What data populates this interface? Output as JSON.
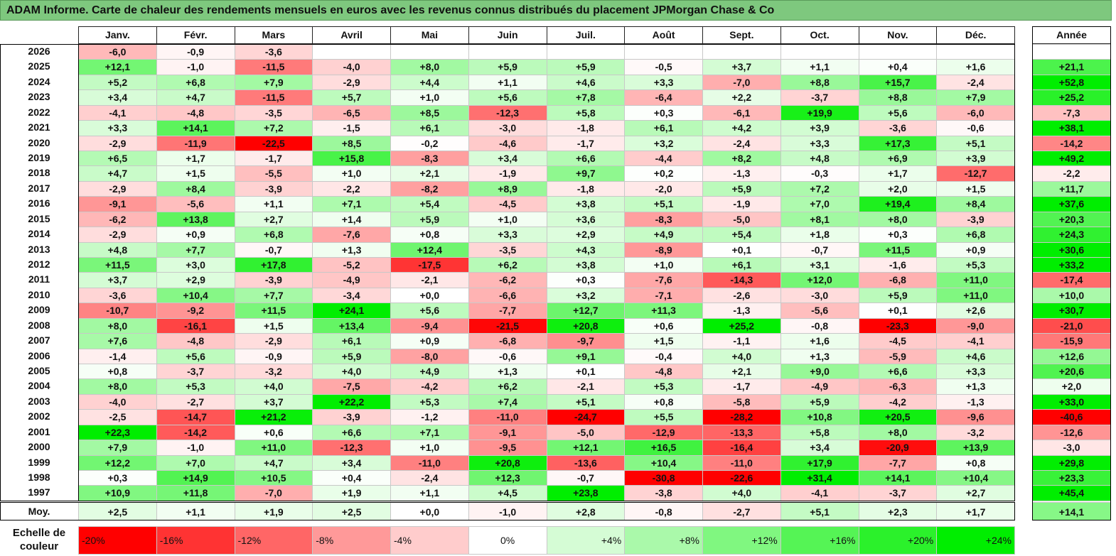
{
  "title": "ADAM Informe. Carte de chaleur des rendements mensuels en euros avec les revenus connus distribués du placement JPMorgan Chase & Co",
  "year_header": "Année",
  "avg_label": "Moy.",
  "scale_label": "Echelle de couleur",
  "colors": {
    "neg_max": "#ff0000",
    "neutral": "#ffffff",
    "pos_max": "#00ee00",
    "title_bg": "#7ec87e"
  },
  "chart_data": {
    "type": "heatmap",
    "title": "ADAM Informe. Carte de chaleur des rendements mensuels en euros avec les revenus connus distribués du placement JPMorgan Chase & Co",
    "unit": "%",
    "months": [
      "Janv.",
      "Févr.",
      "Mars",
      "Avril",
      "Mai",
      "Juin",
      "Juil.",
      "Août",
      "Sept.",
      "Oct.",
      "Nov.",
      "Déc."
    ],
    "rows": [
      {
        "year": "2026",
        "values": [
          -6.0,
          -0.9,
          -3.6,
          null,
          null,
          null,
          null,
          null,
          null,
          null,
          null,
          null
        ],
        "annual": null
      },
      {
        "year": "2025",
        "values": [
          12.1,
          -1.0,
          -11.5,
          -4.0,
          8.0,
          5.9,
          5.9,
          -0.5,
          3.7,
          1.1,
          0.4,
          1.6
        ],
        "annual": 21.1
      },
      {
        "year": "2024",
        "values": [
          5.2,
          6.8,
          7.9,
          -2.9,
          4.4,
          1.1,
          4.6,
          3.3,
          -7.0,
          8.8,
          15.7,
          -2.4
        ],
        "annual": 52.8
      },
      {
        "year": "2023",
        "values": [
          3.4,
          4.7,
          -11.5,
          5.7,
          1.0,
          5.6,
          7.8,
          -6.4,
          2.2,
          -3.7,
          8.8,
          7.9
        ],
        "annual": 25.2
      },
      {
        "year": "2022",
        "values": [
          -4.1,
          -4.8,
          -3.5,
          -6.5,
          8.5,
          -12.3,
          5.8,
          0.3,
          -6.1,
          19.9,
          5.6,
          -6.0
        ],
        "annual": -7.3
      },
      {
        "year": "2021",
        "values": [
          3.3,
          14.1,
          7.2,
          -1.5,
          6.1,
          -3.0,
          -1.8,
          6.1,
          4.2,
          3.9,
          -3.6,
          -0.6
        ],
        "annual": 38.1
      },
      {
        "year": "2020",
        "values": [
          -2.9,
          -11.9,
          -22.5,
          8.5,
          -0.2,
          -4.6,
          -1.7,
          3.2,
          -2.4,
          3.3,
          17.3,
          5.1
        ],
        "annual": -14.2
      },
      {
        "year": "2019",
        "values": [
          6.5,
          1.7,
          -1.7,
          15.8,
          -8.3,
          3.4,
          6.6,
          -4.4,
          8.2,
          4.8,
          6.9,
          3.9
        ],
        "annual": 49.2
      },
      {
        "year": "2018",
        "values": [
          4.7,
          1.5,
          -5.5,
          1.0,
          2.1,
          -1.9,
          9.7,
          0.2,
          -1.3,
          -0.3,
          1.7,
          -12.7
        ],
        "annual": -2.2
      },
      {
        "year": "2017",
        "values": [
          -2.9,
          8.4,
          -3.9,
          -2.2,
          -8.2,
          8.9,
          -1.8,
          -2.0,
          5.9,
          7.2,
          2.0,
          1.5
        ],
        "annual": 11.7
      },
      {
        "year": "2016",
        "values": [
          -9.1,
          -5.6,
          1.1,
          7.1,
          5.4,
          -4.5,
          3.8,
          5.1,
          -1.9,
          7.0,
          19.4,
          8.4
        ],
        "annual": 37.6
      },
      {
        "year": "2015",
        "values": [
          -6.2,
          13.8,
          2.7,
          1.4,
          5.9,
          1.0,
          3.6,
          -8.3,
          -5.0,
          8.1,
          8.0,
          -3.9
        ],
        "annual": 20.3
      },
      {
        "year": "2014",
        "values": [
          -2.9,
          0.9,
          6.8,
          -7.6,
          0.8,
          3.3,
          2.9,
          4.9,
          5.4,
          1.8,
          0.3,
          6.8
        ],
        "annual": 24.3
      },
      {
        "year": "2013",
        "values": [
          4.8,
          7.7,
          -0.7,
          1.3,
          12.4,
          -3.5,
          4.3,
          -8.9,
          0.1,
          -0.7,
          11.5,
          0.9
        ],
        "annual": 30.6
      },
      {
        "year": "2012",
        "values": [
          11.5,
          3.0,
          17.8,
          -5.2,
          -17.5,
          6.2,
          3.8,
          1.0,
          6.1,
          3.1,
          -1.6,
          5.3
        ],
        "annual": 33.2
      },
      {
        "year": "2011",
        "values": [
          3.7,
          2.9,
          -3.9,
          -4.9,
          -2.1,
          -6.2,
          0.3,
          -7.6,
          -14.3,
          12.0,
          -6.8,
          11.0
        ],
        "annual": -17.4
      },
      {
        "year": "2010",
        "values": [
          -3.6,
          10.4,
          7.7,
          -3.4,
          0.0,
          -6.6,
          3.2,
          -7.1,
          -2.6,
          -3.0,
          5.9,
          11.0
        ],
        "annual": 10.0
      },
      {
        "year": "2009",
        "values": [
          -10.7,
          -9.2,
          11.5,
          24.1,
          5.6,
          -7.7,
          12.7,
          11.3,
          -1.3,
          -5.6,
          0.1,
          2.6
        ],
        "annual": 30.7
      },
      {
        "year": "2008",
        "values": [
          8.0,
          -16.1,
          1.5,
          13.4,
          -9.4,
          -21.5,
          20.8,
          0.6,
          25.2,
          -0.8,
          -23.3,
          -9.0
        ],
        "annual": -21.0
      },
      {
        "year": "2007",
        "values": [
          7.6,
          -4.8,
          -2.9,
          6.1,
          0.9,
          -6.8,
          -9.7,
          1.5,
          -1.1,
          1.6,
          -4.5,
          -4.1
        ],
        "annual": -15.9
      },
      {
        "year": "2006",
        "values": [
          -1.4,
          5.6,
          -0.9,
          5.9,
          -8.0,
          -0.6,
          9.1,
          -0.4,
          4.0,
          1.3,
          -5.9,
          4.6
        ],
        "annual": 12.6
      },
      {
        "year": "2005",
        "values": [
          0.8,
          -3.7,
          -3.2,
          4.0,
          4.9,
          1.3,
          0.1,
          -4.8,
          2.1,
          9.0,
          6.6,
          3.3
        ],
        "annual": 20.6
      },
      {
        "year": "2004",
        "values": [
          8.0,
          5.3,
          4.0,
          -7.5,
          -4.2,
          6.2,
          -2.1,
          5.3,
          -1.7,
          -4.9,
          -6.3,
          1.3
        ],
        "annual": 2.0
      },
      {
        "year": "2003",
        "values": [
          -4.0,
          -2.7,
          3.7,
          22.2,
          5.3,
          7.4,
          5.1,
          0.8,
          -5.8,
          5.9,
          -4.2,
          -1.3
        ],
        "annual": 33.0
      },
      {
        "year": "2002",
        "values": [
          -2.5,
          -14.7,
          21.2,
          -3.9,
          -1.2,
          -11.0,
          -24.7,
          5.5,
          -28.2,
          10.8,
          20.5,
          -9.6
        ],
        "annual": -40.6
      },
      {
        "year": "2001",
        "values": [
          22.3,
          -14.2,
          0.6,
          6.6,
          7.1,
          -9.1,
          -5.0,
          -12.9,
          -13.3,
          5.8,
          8.0,
          -3.2
        ],
        "annual": -12.6
      },
      {
        "year": "2000",
        "values": [
          7.9,
          -1.0,
          11.0,
          -12.3,
          1.0,
          -9.5,
          12.1,
          16.5,
          -16.4,
          3.4,
          -20.9,
          13.9
        ],
        "annual": -3.0
      },
      {
        "year": "1999",
        "values": [
          12.2,
          7.0,
          4.7,
          3.4,
          -11.0,
          20.8,
          -13.6,
          10.4,
          -11.0,
          17.9,
          -7.7,
          0.8
        ],
        "annual": 29.8
      },
      {
        "year": "1998",
        "values": [
          0.3,
          14.9,
          10.5,
          0.4,
          -2.4,
          12.3,
          -0.7,
          -30.8,
          -22.6,
          31.4,
          14.1,
          10.4
        ],
        "annual": 23.3
      },
      {
        "year": "1997",
        "values": [
          10.9,
          11.8,
          -7.0,
          1.9,
          1.1,
          4.5,
          23.8,
          -3.8,
          4.0,
          -4.1,
          -3.7,
          2.7
        ],
        "annual": 45.4
      }
    ],
    "average": {
      "values": [
        2.5,
        1.1,
        1.9,
        2.5,
        0.0,
        -1.0,
        2.8,
        -0.8,
        -2.7,
        5.1,
        2.3,
        1.7
      ],
      "annual": 14.1
    },
    "scale": [
      {
        "value": -20,
        "label": "-20%"
      },
      {
        "value": -16,
        "label": "-16%"
      },
      {
        "value": -12,
        "label": "-12%"
      },
      {
        "value": -8,
        "label": "-8%"
      },
      {
        "value": -4,
        "label": "-4%"
      },
      {
        "value": 0,
        "label": "0%"
      },
      {
        "value": 4,
        "label": "+4%"
      },
      {
        "value": 8,
        "label": "+8%"
      },
      {
        "value": 12,
        "label": "+12%"
      },
      {
        "value": 16,
        "label": "+16%"
      },
      {
        "value": 20,
        "label": "+20%"
      },
      {
        "value": 24,
        "label": "+24%"
      }
    ]
  }
}
